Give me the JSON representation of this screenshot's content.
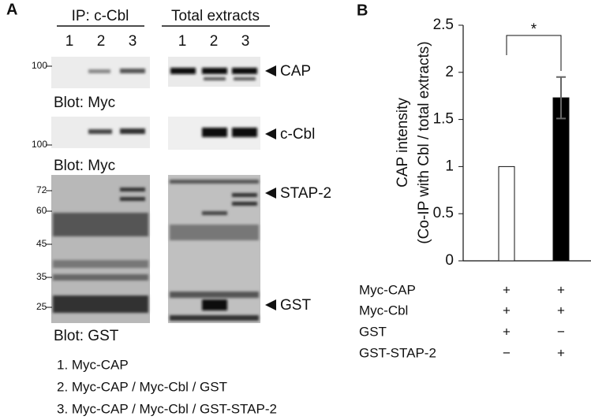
{
  "panel_a": {
    "label": "A",
    "ip_header": "IP: c-Cbl",
    "total_header": "Total extracts",
    "ip_lanes": [
      "1",
      "2",
      "3"
    ],
    "total_lanes": [
      "1",
      "2",
      "3"
    ],
    "markers": [
      "100",
      "100",
      "72",
      "60",
      "45",
      "35",
      "25"
    ],
    "blot_labels": [
      "Blot: Myc",
      "Blot: Myc",
      "Blot: GST"
    ],
    "bands": [
      "CAP",
      "c-Cbl",
      "STAP-2",
      "GST"
    ],
    "legend": [
      "1. Myc-CAP",
      "2. Myc-CAP / Myc-Cbl / GST",
      "3. Myc-CAP / Myc-Cbl / GST-STAP-2"
    ]
  },
  "chart_data": {
    "type": "bar",
    "panel_label": "B",
    "y_label": [
      "CAP intensity",
      "(Co-IP with Cbl / total extracts)"
    ],
    "categories": [
      null,
      null
    ],
    "values": [
      1,
      1.73
    ],
    "errors": [
      0,
      0.22
    ],
    "colors": [
      "#ffffff",
      "#000000"
    ],
    "ylim": [
      0,
      2.5
    ],
    "yticks": [
      0,
      0.5,
      1,
      1.5,
      2,
      2.5
    ],
    "annotation": "*",
    "conditions": [
      {
        "label": "Myc-CAP",
        "signs": [
          "+",
          "+"
        ]
      },
      {
        "label": "Myc-Cbl",
        "signs": [
          "+",
          "+"
        ]
      },
      {
        "label": "GST",
        "signs": [
          "+",
          "−"
        ]
      },
      {
        "label": "GST-STAP-2",
        "signs": [
          "−",
          "+"
        ]
      }
    ]
  }
}
